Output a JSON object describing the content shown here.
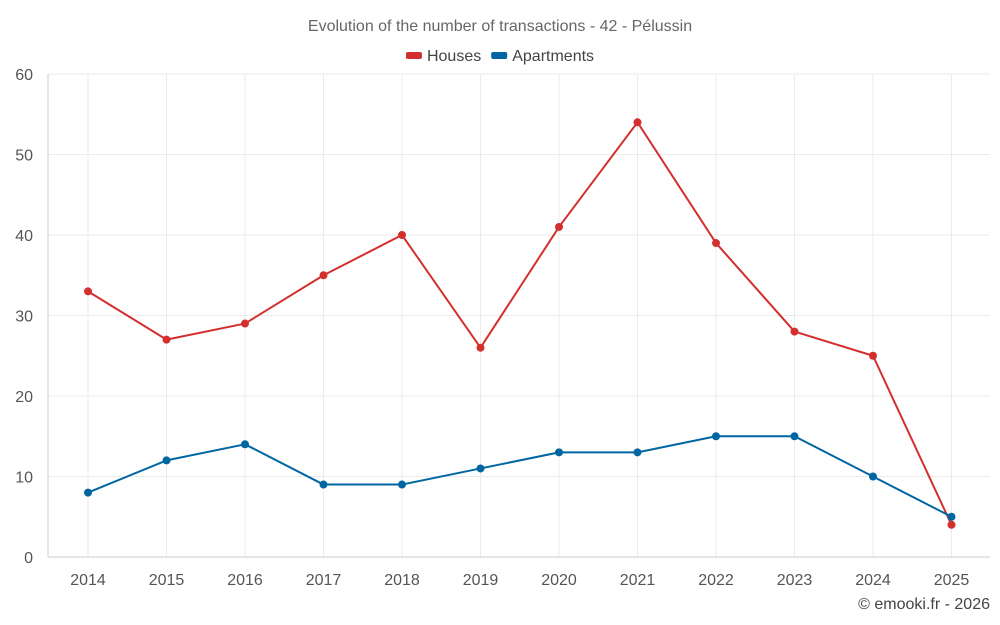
{
  "chart_data": {
    "type": "line",
    "title": "Evolution of the number of transactions - 42 - Pélussin",
    "xlabel": "",
    "ylabel": "",
    "categories": [
      "2014",
      "2015",
      "2016",
      "2017",
      "2018",
      "2019",
      "2020",
      "2021",
      "2022",
      "2023",
      "2024",
      "2025"
    ],
    "series": [
      {
        "name": "Houses",
        "color": "#d32f2f",
        "values": [
          33,
          27,
          29,
          35,
          40,
          26,
          41,
          54,
          39,
          28,
          25,
          4
        ]
      },
      {
        "name": "Apartments",
        "color": "#0066a1",
        "values": [
          8,
          12,
          14,
          9,
          9,
          11,
          13,
          13,
          15,
          15,
          10,
          5
        ]
      }
    ],
    "ylim": [
      0,
      60
    ],
    "yticks": [
      0,
      10,
      20,
      30,
      40,
      50,
      60
    ],
    "grid": true,
    "legend_position": "top-center"
  },
  "credit": "© emooki.fr - 2026"
}
